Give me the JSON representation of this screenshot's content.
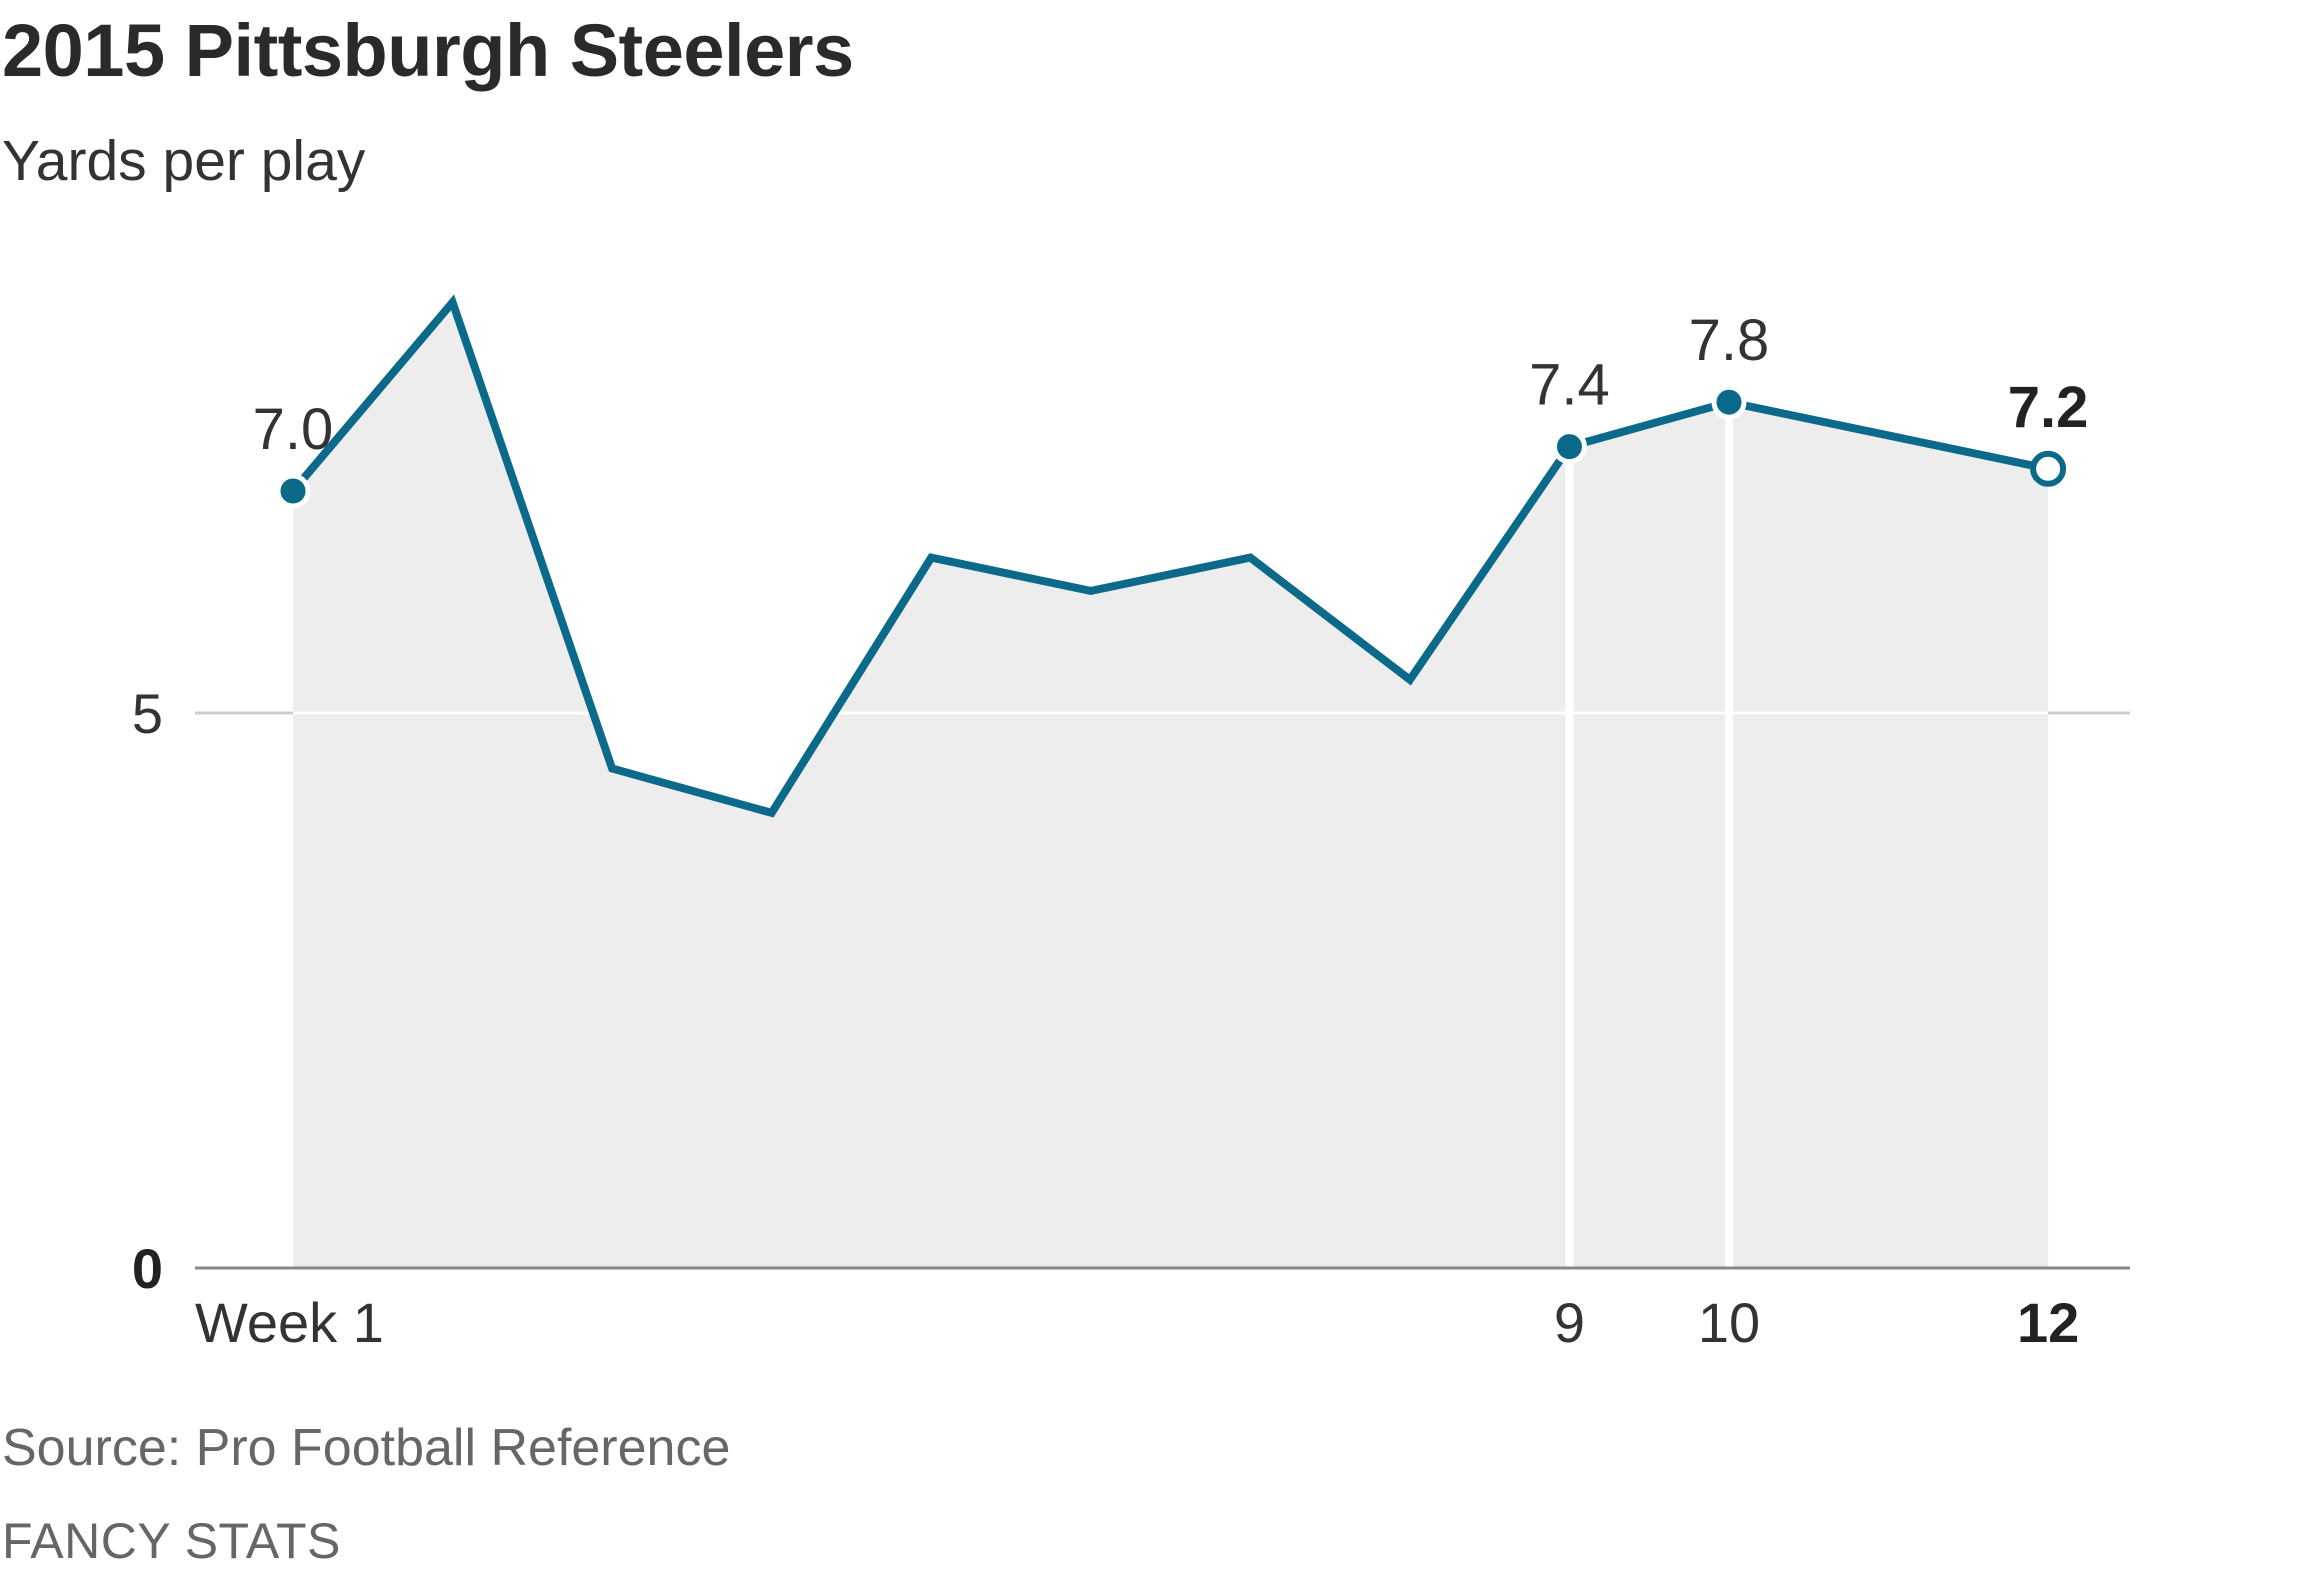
{
  "title": "2015 Pittsburgh Steelers",
  "subtitle": "Yards per play",
  "source": "Source: Pro Football Reference",
  "brand": "FANCY STATS",
  "colors": {
    "line": "#0b6a8a",
    "area": "#ededed",
    "gridline": "#cccccc",
    "axis": "#888888",
    "text": "#333333"
  },
  "chart_data": {
    "type": "area",
    "title": "2015 Pittsburgh Steelers",
    "ylabel": "Yards per play",
    "xlabel": "",
    "ylim": [
      0,
      9
    ],
    "yticks": [
      {
        "value": 0,
        "label": "0",
        "bold": true
      },
      {
        "value": 5,
        "label": "5",
        "bold": false
      }
    ],
    "x": [
      1,
      2,
      3,
      4,
      5,
      6,
      7,
      8,
      9,
      10,
      12
    ],
    "values": [
      7.0,
      8.7,
      4.5,
      4.1,
      6.4,
      6.1,
      6.4,
      5.3,
      7.4,
      7.8,
      7.2
    ],
    "xticks": [
      {
        "value": 1,
        "label": "Week 1",
        "bold": false
      },
      {
        "value": 9,
        "label": "9",
        "bold": false
      },
      {
        "value": 10,
        "label": "10",
        "bold": false
      },
      {
        "value": 12,
        "label": "12",
        "bold": true
      }
    ],
    "highlights": [
      {
        "x": 1,
        "value": 7.0,
        "label": "7.0",
        "bold": false,
        "open": false,
        "dropline": false
      },
      {
        "x": 9,
        "value": 7.4,
        "label": "7.4",
        "bold": false,
        "open": false,
        "dropline": true
      },
      {
        "x": 10,
        "value": 7.8,
        "label": "7.8",
        "bold": false,
        "open": false,
        "dropline": true
      },
      {
        "x": 12,
        "value": 7.2,
        "label": "7.2",
        "bold": true,
        "open": true,
        "dropline": false
      }
    ],
    "grid": true
  }
}
